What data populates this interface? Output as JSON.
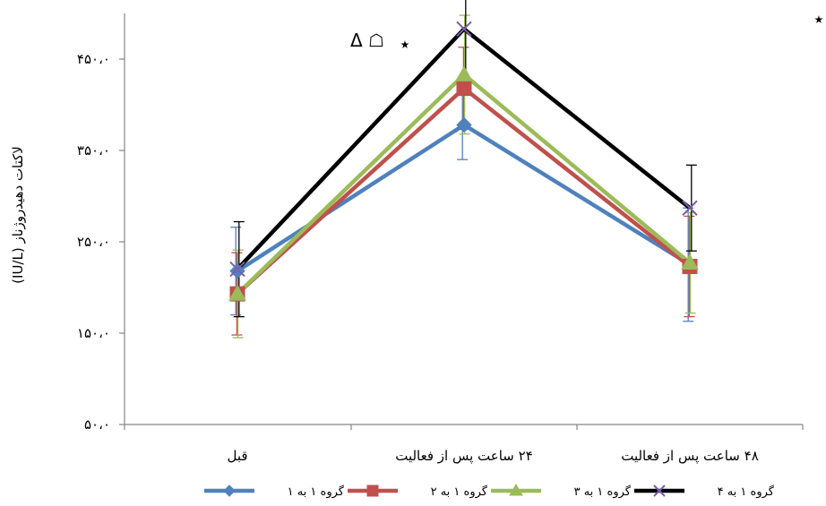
{
  "chart_data": {
    "type": "line",
    "ylabel": "لاکتات دهیدروژناز (IU/L)",
    "ylim": [
      50,
      500
    ],
    "yticks": [
      50,
      150,
      250,
      350,
      450
    ],
    "ytick_labels": [
      "۵۰،۰",
      "۱۵۰،۰",
      "۲۵۰،۰",
      "۳۵۰،۰",
      "۴۵۰،۰"
    ],
    "categories": [
      "قبل",
      "۲۴ ساعت پس از فعالیت",
      "۴۸ ساعت پس از فعالیت"
    ],
    "series": [
      {
        "name": "گروه ۱ به ۱",
        "color": "#4f81bd",
        "marker": "diamond",
        "values": [
          218,
          378,
          225
        ],
        "err": [
          48,
          38,
          62
        ]
      },
      {
        "name": "گروه ۱ به ۲",
        "color": "#c0504d",
        "marker": "square",
        "values": [
          193,
          418,
          223
        ],
        "err": [
          45,
          45,
          55
        ]
      },
      {
        "name": "گروه ۱ به ۳",
        "color": "#9bbb59",
        "marker": "triangle",
        "values": [
          193,
          433,
          227
        ],
        "err": [
          48,
          65,
          55
        ]
      },
      {
        "name": "گروه ۱ به ۴",
        "color": "#000000",
        "marker": "x",
        "values": [
          220,
          483,
          287
        ],
        "err": [
          52,
          58,
          47
        ]
      }
    ],
    "annotations": [
      {
        "text": "Δ ☖",
        "category_index": 1
      },
      {
        "text": "٭",
        "category_index": 1
      },
      {
        "text": "٭",
        "position": "top-right"
      }
    ],
    "legend_position": "bottom",
    "grid": false
  }
}
